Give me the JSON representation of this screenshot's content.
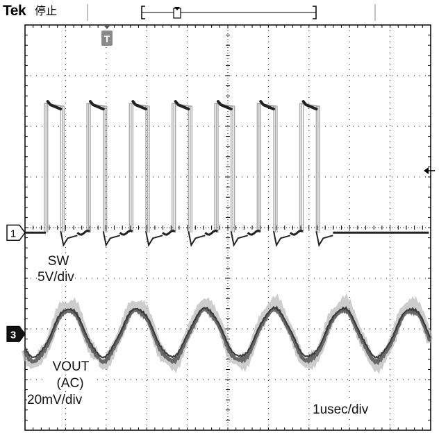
{
  "header": {
    "brand": "Tek",
    "status": "停止"
  },
  "markers": {
    "trigger_position": "T",
    "channel_1": "1",
    "channel_3": "3"
  },
  "channels": [
    {
      "name": "SW",
      "scale": "5V/div"
    },
    {
      "name": "VOUT",
      "coupling": "(AC)",
      "scale": "20mV/div"
    }
  ],
  "timebase": "1usec/div",
  "colors": {
    "background": "#ffffff",
    "graticule": "#000000",
    "sw_trace_high": "#222222",
    "sw_trace_edge": "#9a9a9a",
    "vout_trace": "#555555",
    "vout_envelope": "#b8b8b8"
  },
  "chart_data": {
    "type": "line",
    "x_divisions": 10,
    "y_divisions": 8,
    "series": [
      {
        "name": "SW",
        "waveform": "square",
        "pulse_count": 7,
        "period_div": 1.05,
        "low_div": -0.1,
        "high_div": 2.45
      },
      {
        "name": "VOUT",
        "waveform": "sine",
        "period_div": 1.69,
        "cycles_visible": 5,
        "amplitude_div": 0.5,
        "center_div": -2.1
      }
    ]
  }
}
